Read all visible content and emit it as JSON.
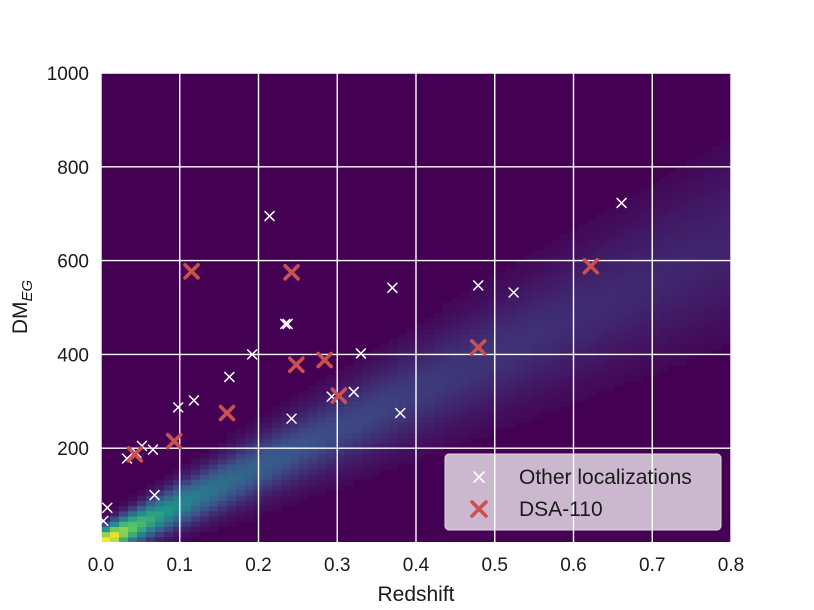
{
  "chart_data": {
    "type": "scatter",
    "title": "",
    "xlabel": "Redshift",
    "ylabel": "DM",
    "ylabel_subscript": "EG",
    "xlim": [
      0.0,
      0.8
    ],
    "ylim": [
      0,
      1000
    ],
    "x_ticks": [
      "0.0",
      "0.1",
      "0.2",
      "0.3",
      "0.4",
      "0.5",
      "0.6",
      "0.7",
      "0.8"
    ],
    "x_tick_values": [
      0.0,
      0.1,
      0.2,
      0.3,
      0.4,
      0.5,
      0.6,
      0.7,
      0.8
    ],
    "y_ticks": [
      "200",
      "400",
      "600",
      "800",
      "1000"
    ],
    "y_tick_values": [
      200,
      400,
      600,
      800,
      1000
    ],
    "grid": true,
    "legend_position": "lower-right",
    "background": {
      "type": "heatmap",
      "colormap": "viridis",
      "description_ridge": "Macquart relation density",
      "ridge_mean_slope": 800,
      "colors": [
        "#440154",
        "#3b528b",
        "#21918c",
        "#5ec962",
        "#fde725"
      ]
    },
    "series": [
      {
        "name": "Other localizations",
        "marker": "x",
        "color": "#ffffff",
        "points": [
          [
            0.003,
            45
          ],
          [
            0.008,
            73
          ],
          [
            0.033,
            178
          ],
          [
            0.045,
            190
          ],
          [
            0.052,
            205
          ],
          [
            0.066,
            197
          ],
          [
            0.068,
            100
          ],
          [
            0.098,
            287
          ],
          [
            0.118,
            302
          ],
          [
            0.163,
            352
          ],
          [
            0.192,
            400
          ],
          [
            0.214,
            695
          ],
          [
            0.234,
            465
          ],
          [
            0.237,
            465
          ],
          [
            0.242,
            263
          ],
          [
            0.293,
            310
          ],
          [
            0.321,
            320
          ],
          [
            0.33,
            402
          ],
          [
            0.37,
            542
          ],
          [
            0.38,
            275
          ],
          [
            0.479,
            547
          ],
          [
            0.524,
            532
          ],
          [
            0.661,
            723
          ]
        ]
      },
      {
        "name": "DSA-110",
        "marker": "x",
        "color": "#cd5050",
        "points": [
          [
            0.043,
            187
          ],
          [
            0.093,
            215
          ],
          [
            0.115,
            577
          ],
          [
            0.16,
            275
          ],
          [
            0.242,
            575
          ],
          [
            0.248,
            378
          ],
          [
            0.284,
            388
          ],
          [
            0.302,
            312
          ],
          [
            0.479,
            415
          ],
          [
            0.622,
            588
          ]
        ]
      }
    ]
  }
}
